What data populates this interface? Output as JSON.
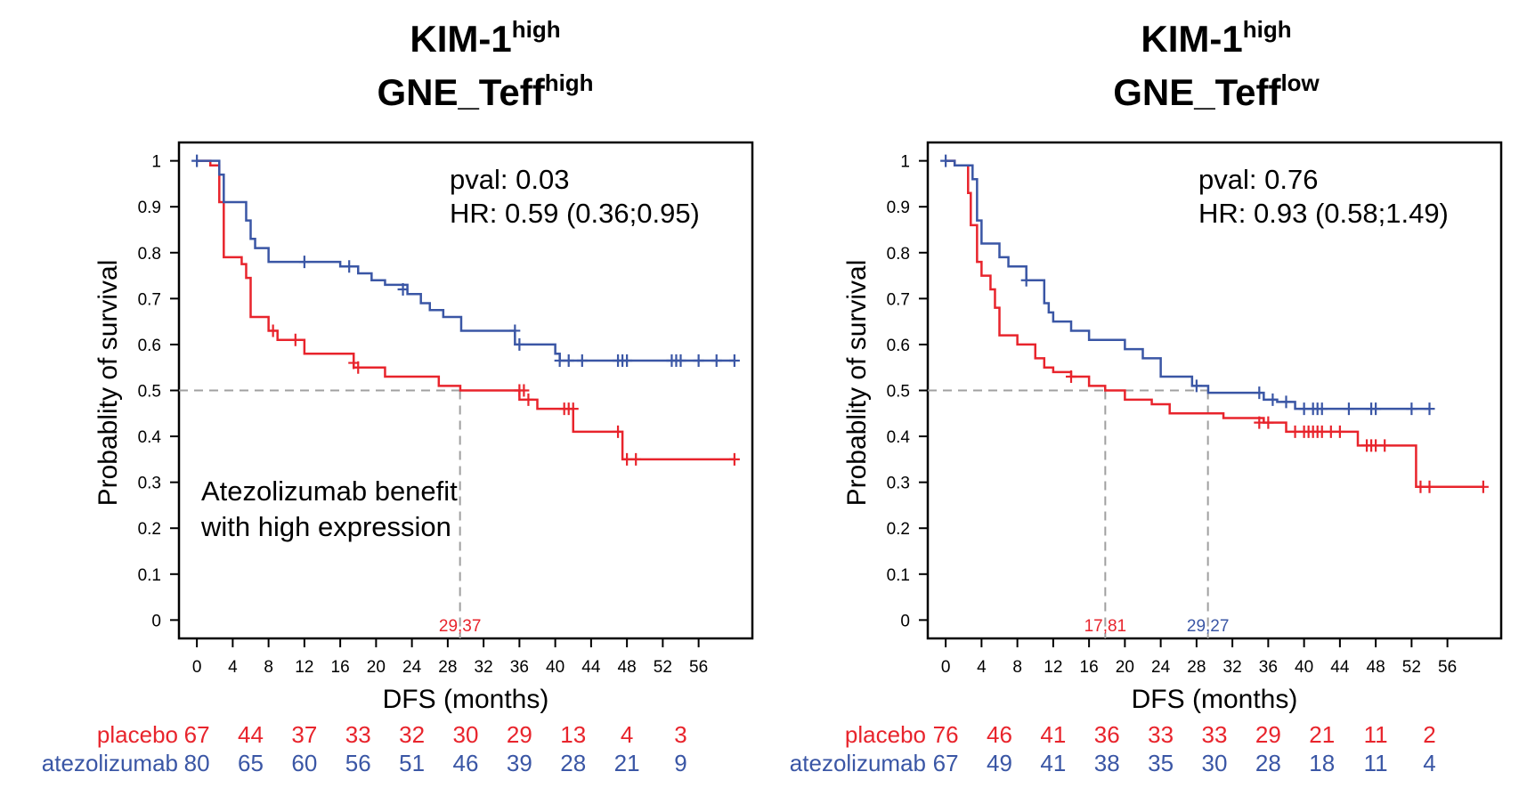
{
  "colors": {
    "placebo": "#e8242c",
    "atezolizumab": "#3a56a5",
    "ref_line": "#a0a0a0"
  },
  "chart_data": [
    {
      "type": "line",
      "title_main": "KIM-1",
      "title_main_sup": "high",
      "title_sub": "GNE_Teff",
      "title_sub_sup": "high",
      "xlabel": "DFS (months)",
      "ylabel": "Probablity of survival",
      "xlim": [
        -2,
        62
      ],
      "ylim": [
        -0.04,
        1.04
      ],
      "x_ticks": [
        0,
        4,
        8,
        12,
        16,
        20,
        24,
        28,
        32,
        36,
        40,
        44,
        48,
        52,
        56
      ],
      "y_ticks": [
        "0",
        "0.1",
        "0.2",
        "0.3",
        "0.4",
        "0.5",
        "0.6",
        "0.7",
        "0.8",
        "0.9",
        "1"
      ],
      "pval": "pval: 0.03",
      "hr": "HR: 0.59 (0.36;0.95)",
      "annotation": [
        "Atezolizumab benefit",
        "with high expression"
      ],
      "median_lines": [
        {
          "x": 29.37,
          "label": "29,37",
          "series": "placebo"
        }
      ],
      "series": [
        {
          "name": "placebo",
          "steps": [
            [
              0,
              1
            ],
            [
              1.5,
              0.99
            ],
            [
              2.5,
              0.91
            ],
            [
              3,
              0.79
            ],
            [
              5,
              0.775
            ],
            [
              5.5,
              0.745
            ],
            [
              6,
              0.66
            ],
            [
              8,
              0.63
            ],
            [
              9,
              0.61
            ],
            [
              12,
              0.58
            ],
            [
              17.5,
              0.55
            ],
            [
              21,
              0.53
            ],
            [
              27,
              0.51
            ],
            [
              29.4,
              0.5
            ],
            [
              36,
              0.48
            ],
            [
              38,
              0.46
            ],
            [
              42,
              0.41
            ],
            [
              47.5,
              0.35
            ],
            [
              60,
              0.35
            ]
          ],
          "censors": [
            [
              8.5,
              0.63
            ],
            [
              11,
              0.61
            ],
            [
              17.5,
              0.56
            ],
            [
              18,
              0.55
            ],
            [
              36,
              0.5
            ],
            [
              36.5,
              0.5
            ],
            [
              37,
              0.48
            ],
            [
              41,
              0.46
            ],
            [
              41.5,
              0.46
            ],
            [
              42,
              0.46
            ],
            [
              47,
              0.41
            ],
            [
              48,
              0.35
            ],
            [
              49,
              0.35
            ],
            [
              60,
              0.35
            ]
          ]
        },
        {
          "name": "atezolizumab",
          "steps": [
            [
              0,
              1
            ],
            [
              2.5,
              0.97
            ],
            [
              3,
              0.91
            ],
            [
              5.5,
              0.87
            ],
            [
              6,
              0.83
            ],
            [
              6.5,
              0.81
            ],
            [
              8,
              0.78
            ],
            [
              16,
              0.77
            ],
            [
              18,
              0.755
            ],
            [
              19.5,
              0.74
            ],
            [
              21,
              0.73
            ],
            [
              23.5,
              0.71
            ],
            [
              25,
              0.69
            ],
            [
              26,
              0.675
            ],
            [
              27.5,
              0.66
            ],
            [
              29.5,
              0.63
            ],
            [
              35.5,
              0.6
            ],
            [
              40,
              0.58
            ],
            [
              40.5,
              0.565
            ],
            [
              60,
              0.565
            ]
          ],
          "censors": [
            [
              0,
              1
            ],
            [
              12,
              0.78
            ],
            [
              17,
              0.77
            ],
            [
              23,
              0.72
            ],
            [
              35.5,
              0.63
            ],
            [
              36,
              0.6
            ],
            [
              40.5,
              0.565
            ],
            [
              41.5,
              0.565
            ],
            [
              43,
              0.565
            ],
            [
              47,
              0.565
            ],
            [
              47.5,
              0.565
            ],
            [
              48,
              0.565
            ],
            [
              53,
              0.565
            ],
            [
              53.5,
              0.565
            ],
            [
              54,
              0.565
            ],
            [
              56,
              0.565
            ],
            [
              58,
              0.565
            ],
            [
              60,
              0.565
            ]
          ]
        }
      ],
      "risk_table": {
        "placebo": {
          "label": "placebo",
          "values": [
            "67",
            "44",
            "37",
            "33",
            "32",
            "30",
            "29",
            "13",
            "4",
            "3"
          ]
        },
        "atezolizumab": {
          "label": "atezolizumab",
          "values": [
            "80",
            "65",
            "60",
            "56",
            "51",
            "46",
            "39",
            "28",
            "21",
            "9"
          ]
        }
      }
    },
    {
      "type": "line",
      "title_main": "KIM-1",
      "title_main_sup": "high",
      "title_sub": "GNE_Teff",
      "title_sub_sup": "low",
      "xlabel": "DFS (months)",
      "ylabel": "Probablity of survival",
      "xlim": [
        -2,
        62
      ],
      "ylim": [
        -0.04,
        1.04
      ],
      "x_ticks": [
        0,
        4,
        8,
        12,
        16,
        20,
        24,
        28,
        32,
        36,
        40,
        44,
        48,
        52,
        56
      ],
      "y_ticks": [
        "0",
        "0.1",
        "0.2",
        "0.3",
        "0.4",
        "0.5",
        "0.6",
        "0.7",
        "0.8",
        "0.9",
        "1"
      ],
      "pval": "pval: 0.76",
      "hr": "HR: 0.93 (0.58;1.49)",
      "annotation": [],
      "median_lines": [
        {
          "x": 17.81,
          "label": "17,81",
          "series": "placebo"
        },
        {
          "x": 29.27,
          "label": "29,27",
          "series": "atezolizumab"
        }
      ],
      "series": [
        {
          "name": "placebo",
          "steps": [
            [
              0,
              1
            ],
            [
              1,
              0.99
            ],
            [
              2.5,
              0.93
            ],
            [
              2.8,
              0.86
            ],
            [
              3.5,
              0.78
            ],
            [
              4,
              0.75
            ],
            [
              5,
              0.72
            ],
            [
              5.5,
              0.68
            ],
            [
              6,
              0.62
            ],
            [
              8,
              0.6
            ],
            [
              10,
              0.57
            ],
            [
              11,
              0.55
            ],
            [
              12,
              0.54
            ],
            [
              14,
              0.53
            ],
            [
              16,
              0.51
            ],
            [
              17.8,
              0.5
            ],
            [
              20,
              0.48
            ],
            [
              23,
              0.47
            ],
            [
              25,
              0.45
            ],
            [
              31,
              0.44
            ],
            [
              35.5,
              0.43
            ],
            [
              38,
              0.41
            ],
            [
              46,
              0.38
            ],
            [
              52,
              0.38
            ],
            [
              52.5,
              0.29
            ],
            [
              60,
              0.29
            ]
          ],
          "censors": [
            [
              14,
              0.53
            ],
            [
              35,
              0.43
            ],
            [
              36,
              0.43
            ],
            [
              39,
              0.41
            ],
            [
              40,
              0.41
            ],
            [
              40.5,
              0.41
            ],
            [
              41,
              0.41
            ],
            [
              41.5,
              0.41
            ],
            [
              42,
              0.41
            ],
            [
              43,
              0.41
            ],
            [
              44,
              0.41
            ],
            [
              47,
              0.38
            ],
            [
              47.5,
              0.38
            ],
            [
              48,
              0.38
            ],
            [
              49,
              0.38
            ],
            [
              53,
              0.29
            ],
            [
              54,
              0.29
            ],
            [
              60,
              0.29
            ]
          ]
        },
        {
          "name": "atezolizumab",
          "steps": [
            [
              0,
              1
            ],
            [
              1,
              0.99
            ],
            [
              3,
              0.96
            ],
            [
              3.5,
              0.87
            ],
            [
              4,
              0.82
            ],
            [
              6,
              0.79
            ],
            [
              7,
              0.77
            ],
            [
              9,
              0.74
            ],
            [
              11,
              0.69
            ],
            [
              11.5,
              0.67
            ],
            [
              12,
              0.65
            ],
            [
              14,
              0.63
            ],
            [
              16,
              0.61
            ],
            [
              20,
              0.59
            ],
            [
              22,
              0.57
            ],
            [
              24,
              0.53
            ],
            [
              27.5,
              0.51
            ],
            [
              29.3,
              0.495
            ],
            [
              35.5,
              0.48
            ],
            [
              37,
              0.475
            ],
            [
              39,
              0.46
            ],
            [
              54,
              0.46
            ]
          ],
          "censors": [
            [
              0,
              1
            ],
            [
              9,
              0.74
            ],
            [
              28,
              0.51
            ],
            [
              35,
              0.495
            ],
            [
              36.5,
              0.48
            ],
            [
              38,
              0.475
            ],
            [
              40,
              0.46
            ],
            [
              41,
              0.46
            ],
            [
              41.5,
              0.46
            ],
            [
              42,
              0.46
            ],
            [
              45,
              0.46
            ],
            [
              47.5,
              0.46
            ],
            [
              48,
              0.46
            ],
            [
              52,
              0.46
            ],
            [
              54,
              0.46
            ]
          ]
        }
      ],
      "risk_table": {
        "placebo": {
          "label": "placebo",
          "values": [
            "76",
            "46",
            "41",
            "36",
            "33",
            "33",
            "29",
            "21",
            "11",
            "2"
          ]
        },
        "atezolizumab": {
          "label": "atezolizumab",
          "values": [
            "67",
            "49",
            "41",
            "38",
            "35",
            "30",
            "28",
            "18",
            "11",
            "4"
          ]
        }
      }
    }
  ]
}
